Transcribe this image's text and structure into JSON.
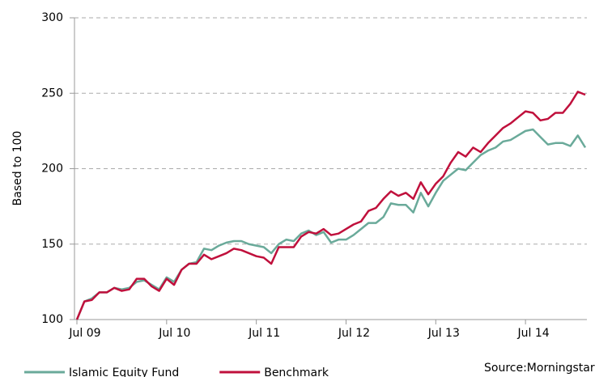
{
  "chart_data": {
    "type": "line",
    "ylabel": "Based to 100",
    "source": "Source:Morningstar",
    "categories": [
      "Jul 09",
      null,
      null,
      null,
      null,
      null,
      null,
      null,
      null,
      null,
      null,
      null,
      "Jul 10",
      null,
      null,
      null,
      null,
      null,
      null,
      null,
      null,
      null,
      null,
      null,
      "Jul 11",
      null,
      null,
      null,
      null,
      null,
      null,
      null,
      null,
      null,
      null,
      null,
      "Jul 12",
      null,
      null,
      null,
      null,
      null,
      null,
      null,
      null,
      null,
      null,
      null,
      "Jul 13",
      null,
      null,
      null,
      null,
      null,
      null,
      null,
      null,
      null,
      null,
      null,
      "Jul 14",
      null,
      null,
      null,
      null,
      null,
      null,
      null,
      null
    ],
    "series": [
      {
        "name": "Islamic Equity Fund",
        "color": "#6aaa9a",
        "values": [
          100,
          112,
          114,
          118,
          118,
          121,
          120,
          121,
          125,
          126,
          123,
          120,
          128,
          125,
          133,
          137,
          138,
          147,
          146,
          149,
          151,
          152,
          152,
          150,
          149,
          148,
          144,
          150,
          153,
          152,
          157,
          159,
          156,
          158,
          151,
          153,
          153,
          156,
          160,
          164,
          164,
          168,
          177,
          176,
          176,
          171,
          184,
          175,
          184,
          192,
          196,
          200,
          199,
          204,
          209,
          212,
          214,
          218,
          219,
          222,
          225,
          226,
          221,
          216,
          217,
          217,
          215,
          222,
          214
        ]
      },
      {
        "name": "Benchmark",
        "color": "#c0103c",
        "values": [
          100,
          112,
          113,
          118,
          118,
          121,
          119,
          120,
          127,
          127,
          122,
          119,
          127,
          123,
          133,
          137,
          137,
          143,
          140,
          142,
          144,
          147,
          146,
          144,
          142,
          141,
          137,
          148,
          148,
          148,
          155,
          158,
          157,
          160,
          156,
          157,
          160,
          163,
          165,
          172,
          174,
          180,
          185,
          182,
          184,
          180,
          191,
          183,
          190,
          195,
          204,
          211,
          208,
          214,
          211,
          217,
          222,
          227,
          230,
          234,
          238,
          237,
          232,
          233,
          237,
          237,
          243,
          251,
          249
        ]
      }
    ],
    "ylim": [
      100,
      300
    ],
    "yticks": [
      100,
      150,
      200,
      250,
      300
    ],
    "grid": true,
    "legend": "bottom-left"
  }
}
